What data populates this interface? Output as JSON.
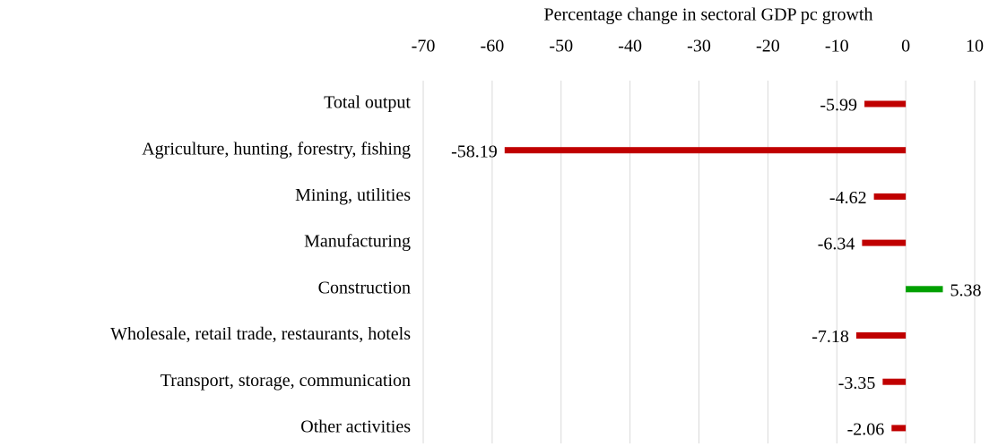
{
  "chart_data": {
    "type": "hbar",
    "title": "Percentage change in sectoral GDP pc growth",
    "categories": [
      "Total output",
      "Agriculture, hunting, forestry, fishing",
      "Mining, utilities",
      "Manufacturing",
      "Construction",
      "Wholesale, retail trade, restaurants, hotels",
      "Transport, storage, communication",
      "Other activities"
    ],
    "values": [
      -5.99,
      -58.19,
      -4.62,
      -6.34,
      5.38,
      -7.18,
      -3.35,
      -2.06
    ],
    "colors": [
      "#c00000",
      "#c00000",
      "#c00000",
      "#c00000",
      "#00a000",
      "#c00000",
      "#c00000",
      "#c00000"
    ],
    "xlim": [
      -70,
      10
    ],
    "xticks": [
      -70,
      -60,
      -50,
      -40,
      -30,
      -20,
      -10,
      0,
      10
    ],
    "grid": true
  }
}
